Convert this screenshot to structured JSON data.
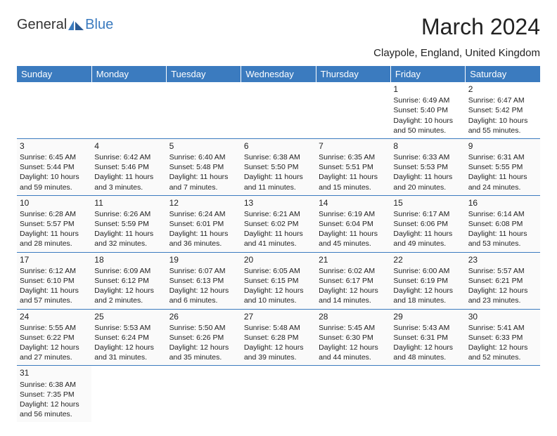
{
  "logo": {
    "part1": "General",
    "part2": "Blue"
  },
  "title": "March 2024",
  "subtitle": "Claypole, England, United Kingdom",
  "colors": {
    "header_bg": "#3b7bbf",
    "header_fg": "#ffffff",
    "border": "#3b7bbf",
    "text": "#222222"
  },
  "daysOfWeek": [
    "Sunday",
    "Monday",
    "Tuesday",
    "Wednesday",
    "Thursday",
    "Friday",
    "Saturday"
  ],
  "weeks": [
    [
      null,
      null,
      null,
      null,
      null,
      {
        "n": "1",
        "sr": "6:49 AM",
        "ss": "5:40 PM",
        "dl": "10 hours and 50 minutes."
      },
      {
        "n": "2",
        "sr": "6:47 AM",
        "ss": "5:42 PM",
        "dl": "10 hours and 55 minutes."
      }
    ],
    [
      {
        "n": "3",
        "sr": "6:45 AM",
        "ss": "5:44 PM",
        "dl": "10 hours and 59 minutes."
      },
      {
        "n": "4",
        "sr": "6:42 AM",
        "ss": "5:46 PM",
        "dl": "11 hours and 3 minutes."
      },
      {
        "n": "5",
        "sr": "6:40 AM",
        "ss": "5:48 PM",
        "dl": "11 hours and 7 minutes."
      },
      {
        "n": "6",
        "sr": "6:38 AM",
        "ss": "5:50 PM",
        "dl": "11 hours and 11 minutes."
      },
      {
        "n": "7",
        "sr": "6:35 AM",
        "ss": "5:51 PM",
        "dl": "11 hours and 15 minutes."
      },
      {
        "n": "8",
        "sr": "6:33 AM",
        "ss": "5:53 PM",
        "dl": "11 hours and 20 minutes."
      },
      {
        "n": "9",
        "sr": "6:31 AM",
        "ss": "5:55 PM",
        "dl": "11 hours and 24 minutes."
      }
    ],
    [
      {
        "n": "10",
        "sr": "6:28 AM",
        "ss": "5:57 PM",
        "dl": "11 hours and 28 minutes."
      },
      {
        "n": "11",
        "sr": "6:26 AM",
        "ss": "5:59 PM",
        "dl": "11 hours and 32 minutes."
      },
      {
        "n": "12",
        "sr": "6:24 AM",
        "ss": "6:01 PM",
        "dl": "11 hours and 36 minutes."
      },
      {
        "n": "13",
        "sr": "6:21 AM",
        "ss": "6:02 PM",
        "dl": "11 hours and 41 minutes."
      },
      {
        "n": "14",
        "sr": "6:19 AM",
        "ss": "6:04 PM",
        "dl": "11 hours and 45 minutes."
      },
      {
        "n": "15",
        "sr": "6:17 AM",
        "ss": "6:06 PM",
        "dl": "11 hours and 49 minutes."
      },
      {
        "n": "16",
        "sr": "6:14 AM",
        "ss": "6:08 PM",
        "dl": "11 hours and 53 minutes."
      }
    ],
    [
      {
        "n": "17",
        "sr": "6:12 AM",
        "ss": "6:10 PM",
        "dl": "11 hours and 57 minutes."
      },
      {
        "n": "18",
        "sr": "6:09 AM",
        "ss": "6:12 PM",
        "dl": "12 hours and 2 minutes."
      },
      {
        "n": "19",
        "sr": "6:07 AM",
        "ss": "6:13 PM",
        "dl": "12 hours and 6 minutes."
      },
      {
        "n": "20",
        "sr": "6:05 AM",
        "ss": "6:15 PM",
        "dl": "12 hours and 10 minutes."
      },
      {
        "n": "21",
        "sr": "6:02 AM",
        "ss": "6:17 PM",
        "dl": "12 hours and 14 minutes."
      },
      {
        "n": "22",
        "sr": "6:00 AM",
        "ss": "6:19 PM",
        "dl": "12 hours and 18 minutes."
      },
      {
        "n": "23",
        "sr": "5:57 AM",
        "ss": "6:21 PM",
        "dl": "12 hours and 23 minutes."
      }
    ],
    [
      {
        "n": "24",
        "sr": "5:55 AM",
        "ss": "6:22 PM",
        "dl": "12 hours and 27 minutes."
      },
      {
        "n": "25",
        "sr": "5:53 AM",
        "ss": "6:24 PM",
        "dl": "12 hours and 31 minutes."
      },
      {
        "n": "26",
        "sr": "5:50 AM",
        "ss": "6:26 PM",
        "dl": "12 hours and 35 minutes."
      },
      {
        "n": "27",
        "sr": "5:48 AM",
        "ss": "6:28 PM",
        "dl": "12 hours and 39 minutes."
      },
      {
        "n": "28",
        "sr": "5:45 AM",
        "ss": "6:30 PM",
        "dl": "12 hours and 44 minutes."
      },
      {
        "n": "29",
        "sr": "5:43 AM",
        "ss": "6:31 PM",
        "dl": "12 hours and 48 minutes."
      },
      {
        "n": "30",
        "sr": "5:41 AM",
        "ss": "6:33 PM",
        "dl": "12 hours and 52 minutes."
      }
    ],
    [
      {
        "n": "31",
        "sr": "6:38 AM",
        "ss": "7:35 PM",
        "dl": "12 hours and 56 minutes."
      },
      null,
      null,
      null,
      null,
      null,
      null
    ]
  ],
  "labels": {
    "sunrise": "Sunrise:",
    "sunset": "Sunset:",
    "daylight": "Daylight:"
  }
}
